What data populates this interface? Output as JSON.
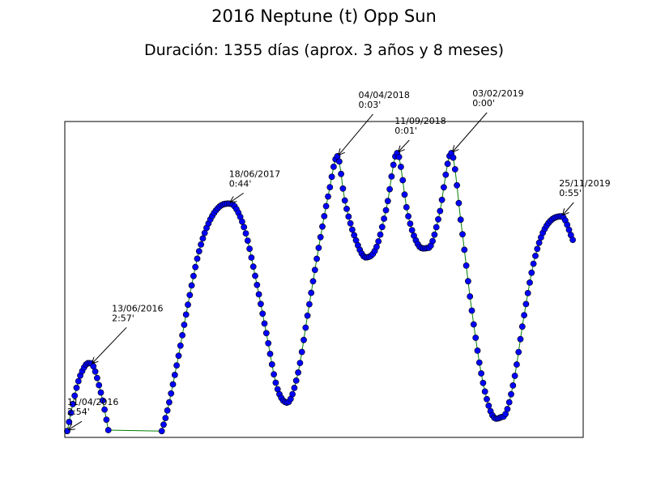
{
  "chart_data": {
    "type": "line",
    "title": "2016 Neptune (t) Opp Sun",
    "subtitle": "Duración: 1355 días (aprox. 3 años y 8 meses)",
    "xlabel": "",
    "ylabel": "",
    "grid": false,
    "ylim": [
      0,
      1
    ],
    "line_color": "#008000",
    "marker_color": "#0000ff",
    "x_start": "2016-04-11",
    "x_end": "2019-12-27",
    "annotations": [
      {
        "date": "11/04/2016",
        "value": "2:54'",
        "y": 0.02
      },
      {
        "date": "13/06/2016",
        "value": "2:57'",
        "y": 0.23
      },
      {
        "date": "18/06/2017",
        "value": "0:44'",
        "y": 0.74
      },
      {
        "date": "04/04/2018",
        "value": "0:03'",
        "y": 0.89
      },
      {
        "date": "11/09/2018",
        "value": "0:01'",
        "y": 0.9
      },
      {
        "date": "03/02/2019",
        "value": "0:00'",
        "y": 0.9
      },
      {
        "date": "25/11/2019",
        "value": "0:55'",
        "y": 0.7
      }
    ],
    "series": [
      {
        "points": [
          [
            "2016-04-11",
            0.02
          ],
          [
            "2016-04-25",
            0.1
          ],
          [
            "2016-05-09",
            0.17
          ],
          [
            "2016-05-23",
            0.215
          ],
          [
            "2016-06-06",
            0.235
          ],
          [
            "2016-06-13",
            0.235
          ],
          [
            "2016-06-20",
            0.225
          ],
          [
            "2016-07-04",
            0.17
          ],
          [
            "2016-07-18",
            0.1
          ],
          [
            "2016-08-01",
            0.01
          ],
          [
            "2016-12-20",
            0.02
          ],
          [
            "2017-01-03",
            0.08
          ],
          [
            "2017-01-31",
            0.24
          ],
          [
            "2017-02-28",
            0.42
          ],
          [
            "2017-03-28",
            0.58
          ],
          [
            "2017-04-25",
            0.68
          ],
          [
            "2017-05-23",
            0.73
          ],
          [
            "2017-06-18",
            0.74
          ],
          [
            "2017-07-04",
            0.73
          ],
          [
            "2017-08-01",
            0.65
          ],
          [
            "2017-08-29",
            0.5
          ],
          [
            "2017-09-26",
            0.33
          ],
          [
            "2017-10-24",
            0.16
          ],
          [
            "2017-11-21",
            0.11
          ],
          [
            "2017-12-19",
            0.2
          ],
          [
            "2018-01-16",
            0.4
          ],
          [
            "2018-02-13",
            0.6
          ],
          [
            "2018-03-13",
            0.78
          ],
          [
            "2018-04-04",
            0.89
          ],
          [
            "2018-04-24",
            0.75
          ],
          [
            "2018-05-22",
            0.63
          ],
          [
            "2018-06-19",
            0.57
          ],
          [
            "2018-07-17",
            0.6
          ],
          [
            "2018-08-14",
            0.73
          ],
          [
            "2018-09-11",
            0.9
          ],
          [
            "2018-10-09",
            0.71
          ],
          [
            "2018-11-06",
            0.61
          ],
          [
            "2018-12-04",
            0.6
          ],
          [
            "2019-01-01",
            0.7
          ],
          [
            "2019-02-03",
            0.9
          ],
          [
            "2019-03-01",
            0.68
          ],
          [
            "2019-03-29",
            0.41
          ],
          [
            "2019-04-26",
            0.19
          ],
          [
            "2019-05-24",
            0.07
          ],
          [
            "2019-06-21",
            0.065
          ],
          [
            "2019-07-19",
            0.17
          ],
          [
            "2019-08-16",
            0.38
          ],
          [
            "2019-09-13",
            0.56
          ],
          [
            "2019-10-11",
            0.66
          ],
          [
            "2019-11-25",
            0.7
          ],
          [
            "2019-12-27",
            0.62
          ]
        ]
      }
    ]
  }
}
